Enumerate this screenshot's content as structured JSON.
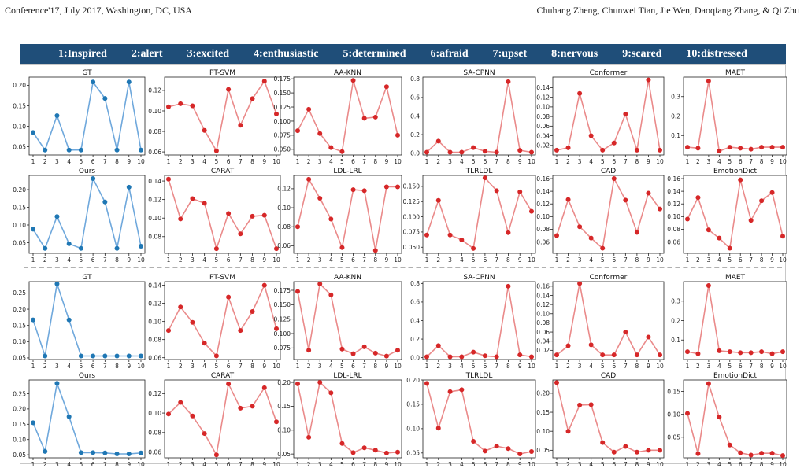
{
  "header": {
    "left": "Conference'17, July 2017, Washington, DC, USA",
    "right": "Chuhang Zheng, Chunwei Tian, Jie Wen, Daoqiang Zhang, & Qi Zhu"
  },
  "legend": [
    "1:Inspired",
    "2:alert",
    "3:excited",
    "4:enthusiastic",
    "5:determined",
    "6:afraid",
    "7:upset",
    "8:nervous",
    "9:scared",
    "10:distressed"
  ],
  "colors": {
    "gt_ours": "#1f77b4",
    "gt_ours_line": "#6fa8dc",
    "method": "#d62728",
    "method_line": "#ea8a8a",
    "legend_bg": "#1f4e79"
  },
  "chart_data": [
    {
      "type": "line",
      "title": "GT",
      "x": [
        1,
        2,
        3,
        4,
        5,
        6,
        7,
        8,
        9,
        10
      ],
      "values": [
        0.085,
        0.042,
        0.126,
        0.042,
        0.042,
        0.208,
        0.168,
        0.042,
        0.208,
        0.042
      ],
      "ylim": [
        0.03,
        0.22
      ],
      "yticks": [
        "0.05",
        "0.10",
        "0.15",
        "0.20"
      ],
      "tickvals": [
        0.05,
        0.1,
        0.15,
        0.2
      ]
    },
    {
      "type": "line",
      "title": "PT-SVM",
      "x": [
        1,
        2,
        3,
        4,
        5,
        6,
        7,
        8,
        9,
        10
      ],
      "values": [
        0.104,
        0.107,
        0.105,
        0.081,
        0.061,
        0.121,
        0.086,
        0.112,
        0.129,
        0.097
      ],
      "ylim": [
        0.057,
        0.133
      ],
      "yticks": [
        "0.06",
        "0.08",
        "0.10",
        "0.12"
      ],
      "tickvals": [
        0.06,
        0.08,
        0.1,
        0.12
      ]
    },
    {
      "type": "line",
      "title": "AA-KNN",
      "x": [
        1,
        2,
        3,
        4,
        5,
        6,
        7,
        8,
        9,
        10
      ],
      "values": [
        0.083,
        0.121,
        0.078,
        0.053,
        0.046,
        0.172,
        0.105,
        0.107,
        0.161,
        0.075
      ],
      "ylim": [
        0.04,
        0.178
      ],
      "yticks": [
        "0.050",
        "0.075",
        "0.100",
        "0.125",
        "0.150",
        "0.175"
      ],
      "tickvals": [
        0.05,
        0.075,
        0.1,
        0.125,
        0.15,
        0.175
      ]
    },
    {
      "type": "line",
      "title": "SA-CPNN",
      "x": [
        1,
        2,
        3,
        4,
        5,
        6,
        7,
        8,
        9,
        10
      ],
      "values": [
        0.01,
        0.13,
        0.01,
        0.01,
        0.06,
        0.02,
        0.01,
        0.77,
        0.03,
        0.01
      ],
      "ylim": [
        -0.02,
        0.82
      ],
      "yticks": [
        "0.0",
        "0.2",
        "0.4",
        "0.6",
        "0.8"
      ],
      "tickvals": [
        0.0,
        0.2,
        0.4,
        0.6,
        0.8
      ]
    },
    {
      "type": "line",
      "title": "Conformer",
      "x": [
        1,
        2,
        3,
        4,
        5,
        6,
        7,
        8,
        9,
        10
      ],
      "values": [
        0.01,
        0.015,
        0.128,
        0.04,
        0.01,
        0.025,
        0.085,
        0.01,
        0.156,
        0.01
      ],
      "ylim": [
        0.0,
        0.162
      ],
      "yticks": [
        "0.02",
        "0.04",
        "0.06",
        "0.08",
        "0.10",
        "0.12",
        "0.14"
      ],
      "tickvals": [
        0.02,
        0.04,
        0.06,
        0.08,
        0.1,
        0.12,
        0.14
      ],
      "ytick_labels_shown": [
        "0.14",
        "0.12",
        "0.10",
        "0.08",
        "0.06",
        "0.04",
        "0.02"
      ]
    },
    {
      "type": "line",
      "title": "MAET",
      "x": [
        1,
        2,
        3,
        4,
        5,
        6,
        7,
        8,
        9,
        10
      ],
      "values": [
        0.04,
        0.035,
        0.38,
        0.02,
        0.04,
        0.035,
        0.03,
        0.04,
        0.04,
        0.04
      ],
      "ylim": [
        0.0,
        0.4
      ],
      "yticks": [
        "0.1",
        "0.2",
        "0.3"
      ],
      "tickvals": [
        0.1,
        0.2,
        0.3
      ]
    },
    {
      "type": "line",
      "title": "Ours",
      "x": [
        1,
        2,
        3,
        4,
        5,
        6,
        7,
        8,
        9,
        10
      ],
      "values": [
        0.088,
        0.034,
        0.124,
        0.047,
        0.034,
        0.231,
        0.165,
        0.034,
        0.207,
        0.04
      ],
      "ylim": [
        0.02,
        0.24
      ],
      "yticks": [
        "0.05",
        "0.10",
        "0.15",
        "0.20"
      ],
      "tickvals": [
        0.05,
        0.1,
        0.15,
        0.2
      ]
    },
    {
      "type": "line",
      "title": "CARAT",
      "x": [
        1,
        2,
        3,
        4,
        5,
        6,
        7,
        8,
        9,
        10
      ],
      "values": [
        0.142,
        0.099,
        0.121,
        0.116,
        0.067,
        0.105,
        0.083,
        0.102,
        0.103,
        0.067
      ],
      "ylim": [
        0.062,
        0.146
      ],
      "yticks": [
        "0.08",
        "0.10",
        "0.12",
        "0.14"
      ],
      "tickvals": [
        0.08,
        0.1,
        0.12,
        0.14
      ]
    },
    {
      "type": "line",
      "title": "LDL-LRL",
      "x": [
        1,
        2,
        3,
        4,
        5,
        6,
        7,
        8,
        9,
        10
      ],
      "values": [
        0.08,
        0.13,
        0.11,
        0.088,
        0.058,
        0.119,
        0.118,
        0.055,
        0.122,
        0.122
      ],
      "ylim": [
        0.052,
        0.134
      ],
      "yticks": [
        "0.06",
        "0.08",
        "0.10",
        "0.12"
      ],
      "tickvals": [
        0.06,
        0.08,
        0.1,
        0.12
      ]
    },
    {
      "type": "line",
      "title": "TLRLDL",
      "x": [
        1,
        2,
        3,
        4,
        5,
        6,
        7,
        8,
        9,
        10
      ],
      "values": [
        0.07,
        0.127,
        0.07,
        0.062,
        0.048,
        0.164,
        0.143,
        0.074,
        0.141,
        0.109
      ],
      "ylim": [
        0.04,
        0.168
      ],
      "yticks": [
        "0.050",
        "0.075",
        "0.100",
        "0.125",
        "0.150"
      ],
      "tickvals": [
        0.05,
        0.075,
        0.1,
        0.125,
        0.15
      ]
    },
    {
      "type": "line",
      "title": "CAD",
      "x": [
        1,
        2,
        3,
        4,
        5,
        6,
        7,
        8,
        9,
        10
      ],
      "values": [
        0.07,
        0.127,
        0.084,
        0.066,
        0.05,
        0.16,
        0.126,
        0.075,
        0.137,
        0.112
      ],
      "ylim": [
        0.042,
        0.165
      ],
      "yticks": [
        "0.06",
        "0.08",
        "0.10",
        "0.12",
        "0.14",
        "0.16"
      ],
      "tickvals": [
        0.06,
        0.08,
        0.1,
        0.12,
        0.14,
        0.16
      ]
    },
    {
      "type": "line",
      "title": "EmotionDict",
      "x": [
        1,
        2,
        3,
        4,
        5,
        6,
        7,
        8,
        9,
        10
      ],
      "values": [
        0.096,
        0.13,
        0.079,
        0.066,
        0.05,
        0.158,
        0.094,
        0.125,
        0.138,
        0.069
      ],
      "ylim": [
        0.042,
        0.165
      ],
      "yticks": [
        "0.06",
        "0.08",
        "0.10",
        "0.12",
        "0.14",
        "0.16"
      ],
      "tickvals": [
        0.06,
        0.08,
        0.1,
        0.12,
        0.14,
        0.16
      ]
    },
    {
      "type": "line",
      "title": "GT",
      "x": [
        1,
        2,
        3,
        4,
        5,
        6,
        7,
        8,
        9,
        10
      ],
      "values": [
        0.167,
        0.056,
        0.278,
        0.167,
        0.056,
        0.056,
        0.056,
        0.056,
        0.056,
        0.056
      ],
      "ylim": [
        0.045,
        0.285
      ],
      "yticks": [
        "0.05",
        "0.10",
        "0.15",
        "0.20",
        "0.25"
      ],
      "tickvals": [
        0.05,
        0.1,
        0.15,
        0.2,
        0.25
      ]
    },
    {
      "type": "line",
      "title": "PT-SVM",
      "x": [
        1,
        2,
        3,
        4,
        5,
        6,
        7,
        8,
        9,
        10
      ],
      "values": [
        0.09,
        0.116,
        0.099,
        0.076,
        0.062,
        0.127,
        0.09,
        0.111,
        0.14,
        0.092
      ],
      "ylim": [
        0.058,
        0.144
      ],
      "yticks": [
        "0.06",
        "0.08",
        "0.10",
        "0.12",
        "0.14"
      ],
      "tickvals": [
        0.06,
        0.08,
        0.1,
        0.12,
        0.14
      ]
    },
    {
      "type": "line",
      "title": "AA-KNN",
      "x": [
        1,
        2,
        3,
        4,
        5,
        6,
        7,
        8,
        9,
        10
      ],
      "values": [
        0.173,
        0.071,
        0.186,
        0.167,
        0.073,
        0.065,
        0.077,
        0.066,
        0.061,
        0.071
      ],
      "ylim": [
        0.055,
        0.19
      ],
      "yticks": [
        "0.075",
        "0.100",
        "0.125",
        "0.150",
        "0.175"
      ],
      "tickvals": [
        0.075,
        0.1,
        0.125,
        0.15,
        0.175
      ]
    },
    {
      "type": "line",
      "title": "SA-CPNN",
      "x": [
        1,
        2,
        3,
        4,
        5,
        6,
        7,
        8,
        9,
        10
      ],
      "values": [
        0.01,
        0.13,
        0.01,
        0.01,
        0.06,
        0.02,
        0.01,
        0.77,
        0.03,
        0.01
      ],
      "ylim": [
        -0.02,
        0.82
      ],
      "yticks": [
        "0.0",
        "0.2",
        "0.4",
        "0.6",
        "0.8"
      ],
      "tickvals": [
        0.0,
        0.2,
        0.4,
        0.6,
        0.8
      ]
    },
    {
      "type": "line",
      "title": "Conformer",
      "x": [
        1,
        2,
        3,
        4,
        5,
        6,
        7,
        8,
        9,
        10
      ],
      "values": [
        0.01,
        0.03,
        0.166,
        0.032,
        0.01,
        0.01,
        0.06,
        0.01,
        0.049,
        0.01
      ],
      "ylim": [
        0.0,
        0.17
      ],
      "yticks": [
        "0.02",
        "0.04",
        "0.06",
        "0.08",
        "0.10",
        "0.12",
        "0.14",
        "0.16"
      ],
      "tickvals": [
        0.02,
        0.04,
        0.06,
        0.08,
        0.1,
        0.12,
        0.14,
        0.16
      ]
    },
    {
      "type": "line",
      "title": "MAET",
      "x": [
        1,
        2,
        3,
        4,
        5,
        6,
        7,
        8,
        9,
        10
      ],
      "values": [
        0.04,
        0.03,
        0.38,
        0.045,
        0.04,
        0.035,
        0.035,
        0.04,
        0.03,
        0.04
      ],
      "ylim": [
        0.0,
        0.4
      ],
      "yticks": [
        "0.1",
        "0.2",
        "0.3"
      ],
      "tickvals": [
        0.1,
        0.2,
        0.3
      ]
    },
    {
      "type": "line",
      "title": "Ours",
      "x": [
        1,
        2,
        3,
        4,
        5,
        6,
        7,
        8,
        9,
        10
      ],
      "values": [
        0.155,
        0.061,
        0.284,
        0.175,
        0.057,
        0.057,
        0.056,
        0.053,
        0.053,
        0.056
      ],
      "ylim": [
        0.04,
        0.295
      ],
      "yticks": [
        "0.05",
        "0.10",
        "0.15",
        "0.20",
        "0.25"
      ],
      "tickvals": [
        0.05,
        0.1,
        0.15,
        0.2,
        0.25
      ]
    },
    {
      "type": "line",
      "title": "CARAT",
      "x": [
        1,
        2,
        3,
        4,
        5,
        6,
        7,
        8,
        9,
        10
      ],
      "values": [
        0.099,
        0.111,
        0.097,
        0.079,
        0.057,
        0.13,
        0.105,
        0.107,
        0.126,
        0.091
      ],
      "ylim": [
        0.054,
        0.134
      ],
      "yticks": [
        "0.06",
        "0.08",
        "0.10",
        "0.12"
      ],
      "tickvals": [
        0.06,
        0.08,
        0.1,
        0.12
      ]
    },
    {
      "type": "line",
      "title": "LDL-LRL",
      "x": [
        1,
        2,
        3,
        4,
        5,
        6,
        7,
        8,
        9,
        10
      ],
      "values": [
        0.197,
        0.085,
        0.2,
        0.178,
        0.072,
        0.053,
        0.063,
        0.058,
        0.052,
        0.054
      ],
      "ylim": [
        0.042,
        0.205
      ],
      "yticks": [
        "0.05",
        "0.10",
        "0.15",
        "0.20"
      ],
      "tickvals": [
        0.05,
        0.1,
        0.15,
        0.2
      ]
    },
    {
      "type": "line",
      "title": "TLRLDL",
      "x": [
        1,
        2,
        3,
        4,
        5,
        6,
        7,
        8,
        9,
        10
      ],
      "values": [
        0.193,
        0.101,
        0.176,
        0.18,
        0.074,
        0.054,
        0.064,
        0.059,
        0.048,
        0.053
      ],
      "ylim": [
        0.04,
        0.2
      ],
      "yticks": [
        "0.05",
        "0.10",
        "0.15",
        "0.20"
      ],
      "tickvals": [
        0.05,
        0.1,
        0.15,
        0.2
      ]
    },
    {
      "type": "line",
      "title": "CAD",
      "x": [
        1,
        2,
        3,
        4,
        5,
        6,
        7,
        8,
        9,
        10
      ],
      "values": [
        0.228,
        0.1,
        0.169,
        0.17,
        0.07,
        0.045,
        0.06,
        0.045,
        0.05,
        0.05
      ],
      "ylim": [
        0.03,
        0.235
      ],
      "yticks": [
        "0.05",
        "0.10",
        "0.15",
        "0.20"
      ],
      "tickvals": [
        0.05,
        0.1,
        0.15,
        0.2
      ]
    },
    {
      "type": "line",
      "title": "EmotionDict",
      "x": [
        1,
        2,
        3,
        4,
        5,
        6,
        7,
        8,
        9,
        10
      ],
      "values": [
        0.152,
        0.064,
        0.217,
        0.144,
        0.083,
        0.066,
        0.061,
        0.065,
        0.065,
        0.06
      ],
      "ylim": [
        0.055,
        0.225
      ],
      "yticks": [
        "0.05",
        "0.10",
        "0.15",
        "0.20"
      ],
      "tickvals": [
        0.1,
        0.15,
        0.2
      ],
      "ytick_labels_shown": [
        "0.20",
        "0.15",
        "0.10"
      ]
    }
  ]
}
